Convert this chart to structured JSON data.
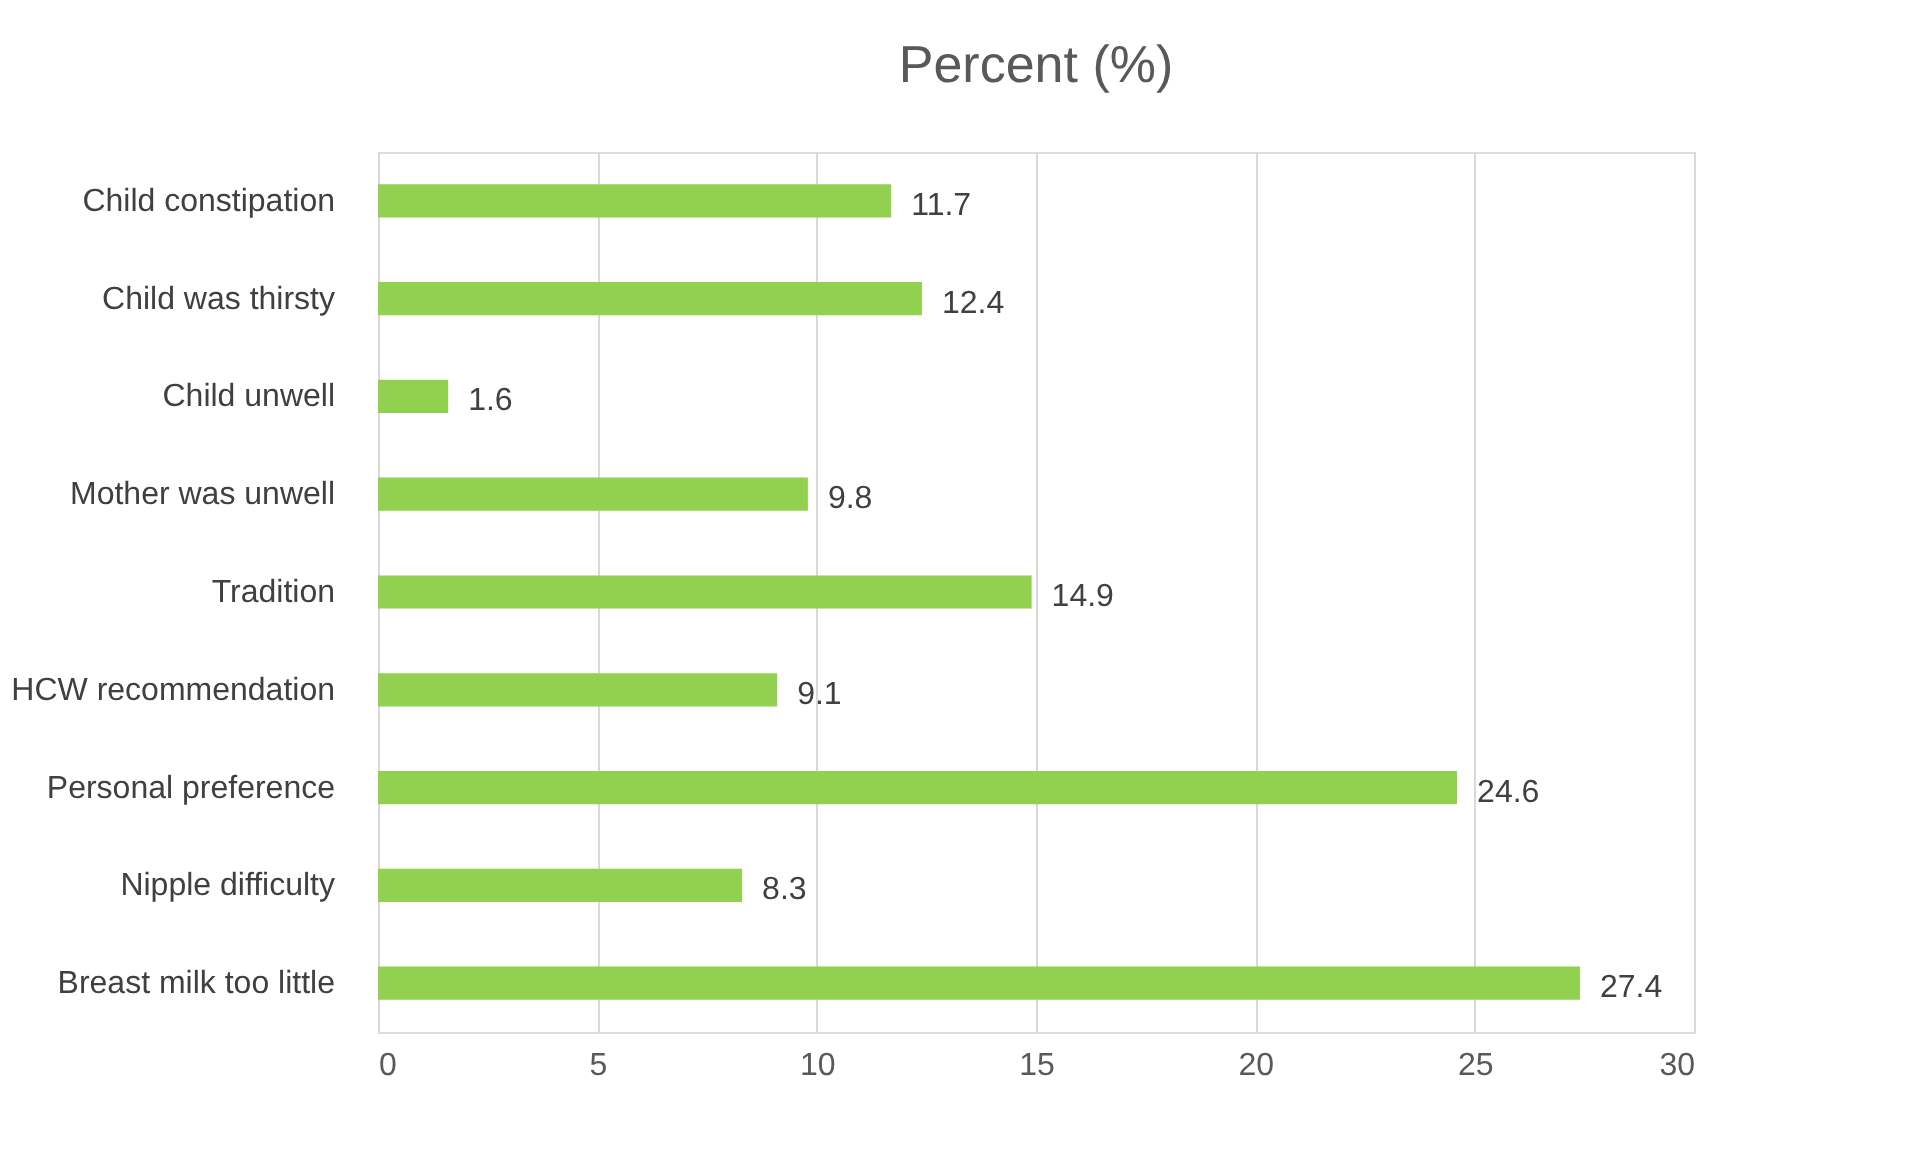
{
  "chart_data": {
    "type": "bar",
    "title": "Percent (%)",
    "orientation": "horizontal",
    "categories": [
      "Child constipation",
      "Child was thirsty",
      "Child unwell",
      "Mother was unwell",
      "Tradition",
      "HCW recommendation",
      "Personal preference",
      "Nipple difficulty",
      "Breast milk too little"
    ],
    "values": [
      11.7,
      12.4,
      1.6,
      9.8,
      14.9,
      9.1,
      24.6,
      8.3,
      27.4
    ],
    "color": "#92d050",
    "xlim": [
      0,
      30
    ],
    "xticks": [
      0,
      5,
      10,
      15,
      20,
      25,
      30
    ],
    "grid": "x",
    "data_labels": true
  }
}
